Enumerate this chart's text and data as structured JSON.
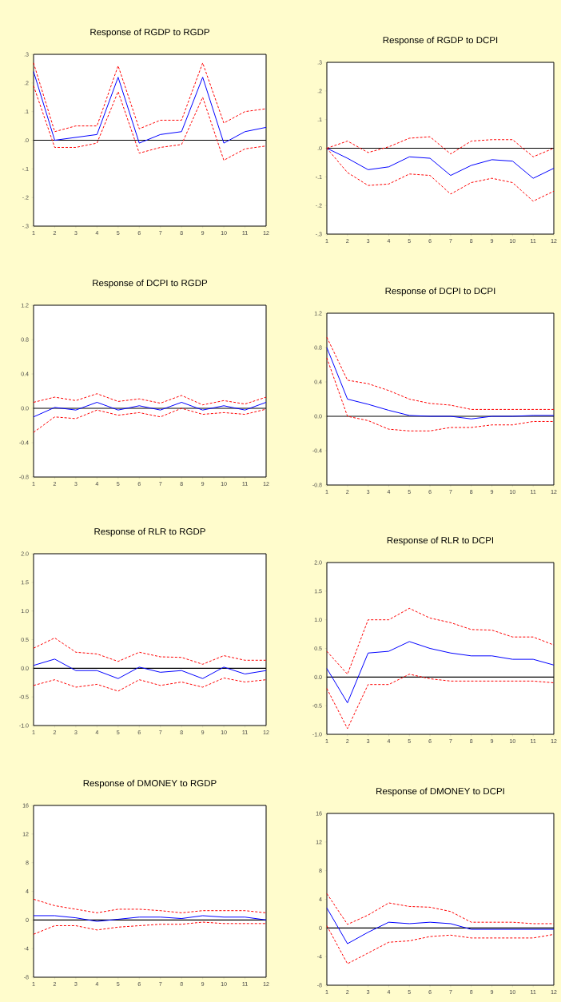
{
  "chart_data": [
    {
      "type": "line",
      "title": "Response of RGDP to RGDP",
      "x": [
        1,
        2,
        3,
        4,
        5,
        6,
        7,
        8,
        9,
        10,
        11,
        12
      ],
      "xlim": [
        1,
        12
      ],
      "xticks": [
        1,
        2,
        3,
        4,
        5,
        6,
        7,
        8,
        9,
        10,
        11,
        12
      ],
      "ylim": [
        -0.3,
        0.3
      ],
      "yticks": [
        {
          "value": -0.3,
          "label": "-.3"
        },
        {
          "value": -0.2,
          "label": "-.2"
        },
        {
          "value": -0.1,
          "label": "-.1"
        },
        {
          "value": 0,
          "label": ".0"
        },
        {
          "value": 0.1,
          "label": ".1"
        },
        {
          "value": 0.2,
          "label": ".2"
        },
        {
          "value": 0.3,
          "label": ".3"
        }
      ],
      "ref_lines": [
        {
          "axis": "y",
          "value": 0,
          "color": "#000000"
        }
      ],
      "series": [
        {
          "color": "#0000ff",
          "line_style": "solid",
          "values": [
            0.24,
            0.0,
            0.01,
            0.02,
            0.22,
            -0.01,
            0.02,
            0.03,
            0.22,
            -0.01,
            0.03,
            0.045
          ]
        },
        {
          "color": "#ff0000",
          "line_style": "dashed",
          "values": [
            0.27,
            0.03,
            0.05,
            0.05,
            0.26,
            0.04,
            0.07,
            0.07,
            0.27,
            0.06,
            0.1,
            0.11
          ]
        },
        {
          "color": "#ff0000",
          "line_style": "dashed",
          "values": [
            0.19,
            -0.025,
            -0.025,
            -0.01,
            0.17,
            -0.045,
            -0.025,
            -0.015,
            0.15,
            -0.07,
            -0.03,
            -0.02
          ]
        }
      ]
    },
    {
      "type": "line",
      "title": "Response of RGDP to DCPI",
      "x": [
        1,
        2,
        3,
        4,
        5,
        6,
        7,
        8,
        9,
        10,
        11,
        12
      ],
      "xlim": [
        1,
        12
      ],
      "xticks": [
        1,
        2,
        3,
        4,
        5,
        6,
        7,
        8,
        9,
        10,
        11,
        12
      ],
      "ylim": [
        -0.3,
        0.3
      ],
      "yticks": [
        {
          "value": -0.3,
          "label": "-.3"
        },
        {
          "value": -0.2,
          "label": "-.2"
        },
        {
          "value": -0.1,
          "label": "-.1"
        },
        {
          "value": 0,
          "label": ".0"
        },
        {
          "value": 0.1,
          "label": ".1"
        },
        {
          "value": 0.2,
          "label": ".2"
        },
        {
          "value": 0.3,
          "label": ".3"
        }
      ],
      "ref_lines": [
        {
          "axis": "y",
          "value": 0,
          "color": "#000000"
        }
      ],
      "series": [
        {
          "color": "#0000ff",
          "line_style": "solid",
          "values": [
            0,
            -0.035,
            -0.075,
            -0.065,
            -0.03,
            -0.035,
            -0.095,
            -0.06,
            -0.04,
            -0.045,
            -0.105,
            -0.07
          ]
        },
        {
          "color": "#ff0000",
          "line_style": "dashed",
          "values": [
            0,
            0.025,
            -0.015,
            0.005,
            0.035,
            0.04,
            -0.02,
            0.025,
            0.03,
            0.03,
            -0.03,
            0.0
          ]
        },
        {
          "color": "#ff0000",
          "line_style": "dashed",
          "values": [
            0,
            -0.085,
            -0.13,
            -0.125,
            -0.09,
            -0.095,
            -0.16,
            -0.12,
            -0.105,
            -0.12,
            -0.185,
            -0.15
          ]
        }
      ]
    },
    {
      "type": "line",
      "title": "Response of DCPI to RGDP",
      "x": [
        1,
        2,
        3,
        4,
        5,
        6,
        7,
        8,
        9,
        10,
        11,
        12
      ],
      "xlim": [
        1,
        12
      ],
      "xticks": [
        1,
        2,
        3,
        4,
        5,
        6,
        7,
        8,
        9,
        10,
        11,
        12
      ],
      "ylim": [
        -0.8,
        1.2
      ],
      "yticks": [
        {
          "value": -0.8,
          "label": "-0.8"
        },
        {
          "value": -0.4,
          "label": "-0.4"
        },
        {
          "value": 0,
          "label": "0.0"
        },
        {
          "value": 0.4,
          "label": "0.4"
        },
        {
          "value": 0.8,
          "label": "0.8"
        },
        {
          "value": 1.2,
          "label": "1.2"
        }
      ],
      "ref_lines": [
        {
          "axis": "y",
          "value": 0,
          "color": "#000000"
        }
      ],
      "series": [
        {
          "color": "#0000ff",
          "line_style": "solid",
          "values": [
            -0.1,
            0.01,
            -0.02,
            0.07,
            -0.02,
            0.03,
            -0.02,
            0.07,
            -0.02,
            0.03,
            -0.02,
            0.07
          ]
        },
        {
          "color": "#ff0000",
          "line_style": "dashed",
          "values": [
            0.07,
            0.13,
            0.09,
            0.17,
            0.08,
            0.11,
            0.06,
            0.15,
            0.04,
            0.09,
            0.05,
            0.13
          ]
        },
        {
          "color": "#ff0000",
          "line_style": "dashed",
          "values": [
            -0.28,
            -0.1,
            -0.12,
            -0.02,
            -0.08,
            -0.05,
            -0.1,
            0.0,
            -0.07,
            -0.05,
            -0.07,
            -0.01
          ]
        }
      ]
    },
    {
      "type": "line",
      "title": "Response of DCPI to DCPI",
      "x": [
        1,
        2,
        3,
        4,
        5,
        6,
        7,
        8,
        9,
        10,
        11,
        12
      ],
      "xlim": [
        1,
        12
      ],
      "xticks": [
        1,
        2,
        3,
        4,
        5,
        6,
        7,
        8,
        9,
        10,
        11,
        12
      ],
      "ylim": [
        -0.8,
        1.2
      ],
      "yticks": [
        {
          "value": -0.8,
          "label": "-0.8"
        },
        {
          "value": -0.4,
          "label": "-0.4"
        },
        {
          "value": 0,
          "label": "0.0"
        },
        {
          "value": 0.4,
          "label": "0.4"
        },
        {
          "value": 0.8,
          "label": "0.8"
        },
        {
          "value": 1.2,
          "label": "1.2"
        }
      ],
      "ref_lines": [
        {
          "axis": "y",
          "value": 0,
          "color": "#000000"
        }
      ],
      "series": [
        {
          "color": "#0000ff",
          "line_style": "solid",
          "values": [
            0.8,
            0.2,
            0.14,
            0.07,
            0.01,
            0.0,
            0.0,
            -0.03,
            0.0,
            0.0,
            0.01,
            0.01
          ]
        },
        {
          "color": "#ff0000",
          "line_style": "dashed",
          "values": [
            0.92,
            0.42,
            0.38,
            0.3,
            0.2,
            0.15,
            0.13,
            0.08,
            0.08,
            0.08,
            0.08,
            0.08
          ]
        },
        {
          "color": "#ff0000",
          "line_style": "dashed",
          "values": [
            0.68,
            0.0,
            -0.05,
            -0.15,
            -0.17,
            -0.17,
            -0.13,
            -0.13,
            -0.1,
            -0.1,
            -0.06,
            -0.06
          ]
        }
      ]
    },
    {
      "type": "line",
      "title": "Response of RLR to RGDP",
      "x": [
        1,
        2,
        3,
        4,
        5,
        6,
        7,
        8,
        9,
        10,
        11,
        12
      ],
      "xlim": [
        1,
        12
      ],
      "xticks": [
        1,
        2,
        3,
        4,
        5,
        6,
        7,
        8,
        9,
        10,
        11,
        12
      ],
      "ylim": [
        -1.0,
        2.0
      ],
      "yticks": [
        {
          "value": -1.0,
          "label": "-1.0"
        },
        {
          "value": -0.5,
          "label": "-0.5"
        },
        {
          "value": 0,
          "label": "0.0"
        },
        {
          "value": 0.5,
          "label": "0.5"
        },
        {
          "value": 1.0,
          "label": "1.0"
        },
        {
          "value": 1.5,
          "label": "1.5"
        },
        {
          "value": 2.0,
          "label": "2.0"
        }
      ],
      "ref_lines": [
        {
          "axis": "y",
          "value": 0,
          "color": "#000000"
        }
      ],
      "series": [
        {
          "color": "#0000ff",
          "line_style": "solid",
          "values": [
            0.05,
            0.16,
            -0.04,
            -0.04,
            -0.18,
            0.02,
            -0.07,
            -0.04,
            -0.18,
            0.02,
            -0.1,
            -0.04
          ]
        },
        {
          "color": "#ff0000",
          "line_style": "dashed",
          "values": [
            0.35,
            0.53,
            0.28,
            0.25,
            0.12,
            0.28,
            0.2,
            0.19,
            0.07,
            0.22,
            0.14,
            0.14
          ]
        },
        {
          "color": "#ff0000",
          "line_style": "dashed",
          "values": [
            -0.3,
            -0.2,
            -0.33,
            -0.28,
            -0.4,
            -0.2,
            -0.3,
            -0.24,
            -0.33,
            -0.17,
            -0.24,
            -0.2
          ]
        }
      ]
    },
    {
      "type": "line",
      "title": "Response of RLR to DCPI",
      "x": [
        1,
        2,
        3,
        4,
        5,
        6,
        7,
        8,
        9,
        10,
        11,
        12
      ],
      "xlim": [
        1,
        12
      ],
      "xticks": [
        1,
        2,
        3,
        4,
        5,
        6,
        7,
        8,
        9,
        10,
        11,
        12
      ],
      "ylim": [
        -1.0,
        2.0
      ],
      "yticks": [
        {
          "value": -1.0,
          "label": "-1.0"
        },
        {
          "value": -0.5,
          "label": "-0.5"
        },
        {
          "value": 0,
          "label": "0.0"
        },
        {
          "value": 0.5,
          "label": "0.5"
        },
        {
          "value": 1.0,
          "label": "1.0"
        },
        {
          "value": 1.5,
          "label": "1.5"
        },
        {
          "value": 2.0,
          "label": "2.0"
        }
      ],
      "ref_lines": [
        {
          "axis": "y",
          "value": 0,
          "color": "#000000"
        }
      ],
      "series": [
        {
          "color": "#0000ff",
          "line_style": "solid",
          "values": [
            0.15,
            -0.45,
            0.42,
            0.45,
            0.62,
            0.5,
            0.42,
            0.37,
            0.37,
            0.31,
            0.31,
            0.21
          ]
        },
        {
          "color": "#ff0000",
          "line_style": "dashed",
          "values": [
            0.45,
            0.05,
            1.0,
            1.0,
            1.2,
            1.03,
            0.95,
            0.83,
            0.82,
            0.7,
            0.7,
            0.56
          ]
        },
        {
          "color": "#ff0000",
          "line_style": "dashed",
          "values": [
            -0.2,
            -0.9,
            -0.13,
            -0.13,
            0.05,
            -0.03,
            -0.07,
            -0.07,
            -0.07,
            -0.07,
            -0.07,
            -0.1
          ]
        }
      ]
    },
    {
      "type": "line",
      "title": "Response of DMONEY to RGDP",
      "x": [
        1,
        2,
        3,
        4,
        5,
        6,
        7,
        8,
        9,
        10,
        11,
        12
      ],
      "xlim": [
        1,
        12
      ],
      "xticks": [
        1,
        2,
        3,
        4,
        5,
        6,
        7,
        8,
        9,
        10,
        11,
        12
      ],
      "ylim": [
        -8,
        16
      ],
      "yticks": [
        -8,
        -4,
        0,
        4,
        8,
        12,
        16
      ],
      "ref_lines": [
        {
          "axis": "y",
          "value": 0,
          "color": "#000000"
        }
      ],
      "series": [
        {
          "color": "#0000ff",
          "line_style": "solid",
          "values": [
            0.6,
            0.6,
            0.3,
            -0.2,
            0.1,
            0.4,
            0.4,
            0.2,
            0.6,
            0.4,
            0.4,
            0.0
          ]
        },
        {
          "color": "#ff0000",
          "line_style": "dashed",
          "values": [
            2.9,
            2.0,
            1.5,
            1.0,
            1.5,
            1.5,
            1.3,
            1.0,
            1.3,
            1.3,
            1.3,
            1.0
          ]
        },
        {
          "color": "#ff0000",
          "line_style": "dashed",
          "values": [
            -2.0,
            -0.8,
            -0.8,
            -1.4,
            -1.0,
            -0.8,
            -0.6,
            -0.6,
            -0.3,
            -0.5,
            -0.5,
            -0.5
          ]
        }
      ]
    },
    {
      "type": "line",
      "title": "Response of DMONEY to DCPI",
      "x": [
        1,
        2,
        3,
        4,
        5,
        6,
        7,
        8,
        9,
        10,
        11,
        12
      ],
      "xlim": [
        1,
        12
      ],
      "xticks": [
        1,
        2,
        3,
        4,
        5,
        6,
        7,
        8,
        9,
        10,
        11,
        12
      ],
      "ylim": [
        -8,
        16
      ],
      "yticks": [
        -8,
        -4,
        0,
        4,
        8,
        12,
        16
      ],
      "ref_lines": [
        {
          "axis": "y",
          "value": 0,
          "color": "#000000"
        }
      ],
      "series": [
        {
          "color": "#0000ff",
          "line_style": "solid",
          "values": [
            2.8,
            -2.2,
            -0.6,
            0.8,
            0.6,
            0.8,
            0.6,
            -0.2,
            -0.2,
            -0.2,
            -0.2,
            -0.2
          ]
        },
        {
          "color": "#ff0000",
          "line_style": "dashed",
          "values": [
            4.8,
            0.5,
            1.8,
            3.5,
            3.0,
            2.9,
            2.3,
            0.8,
            0.8,
            0.8,
            0.6,
            0.6
          ]
        },
        {
          "color": "#ff0000",
          "line_style": "dashed",
          "values": [
            0.3,
            -5.0,
            -3.5,
            -2.0,
            -1.8,
            -1.2,
            -1.0,
            -1.4,
            -1.4,
            -1.4,
            -1.4,
            -0.9
          ]
        }
      ]
    }
  ]
}
